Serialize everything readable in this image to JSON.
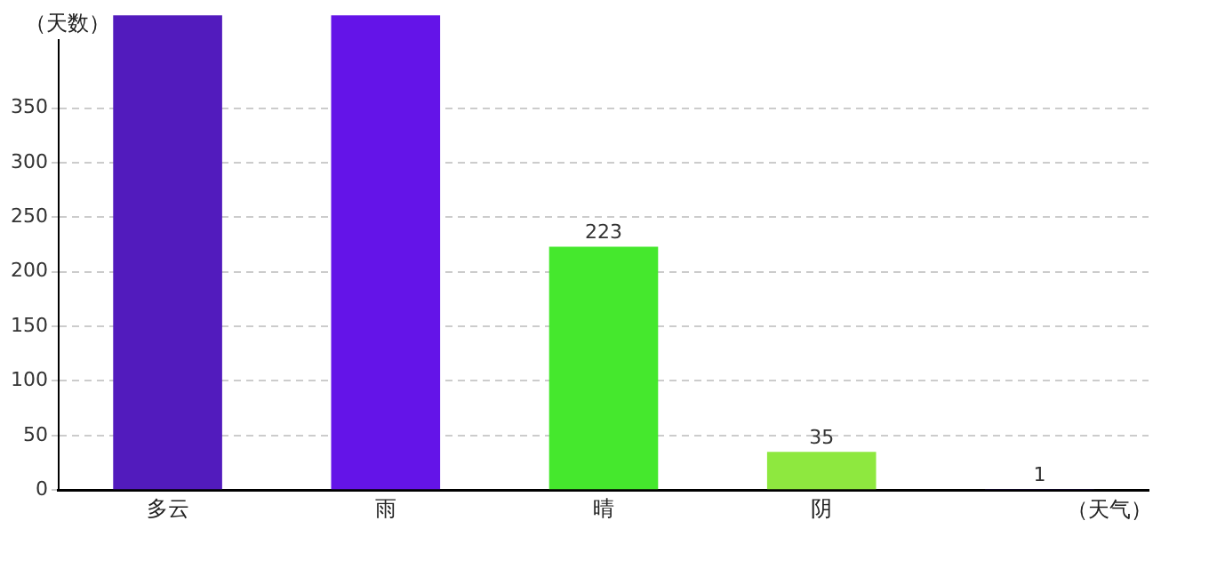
{
  "chart_data": {
    "type": "bar",
    "xlabel": "（天气）",
    "ylabel": "（天数）",
    "categories": [
      "多云",
      "雨",
      "晴",
      "阴",
      null
    ],
    "values": [
      435,
      435,
      223,
      35,
      1
    ],
    "colors": [
      "#521bbd",
      "#6414e8",
      "#45e82d",
      "#8ee83f",
      "#3a1d8a"
    ],
    "value_labels": [
      null,
      null,
      "223",
      "35",
      "1"
    ],
    "ylim": [
      0,
      435
    ],
    "yticks": [
      0,
      50,
      100,
      150,
      200,
      250,
      300,
      350
    ],
    "grid": "y",
    "legend": false
  }
}
